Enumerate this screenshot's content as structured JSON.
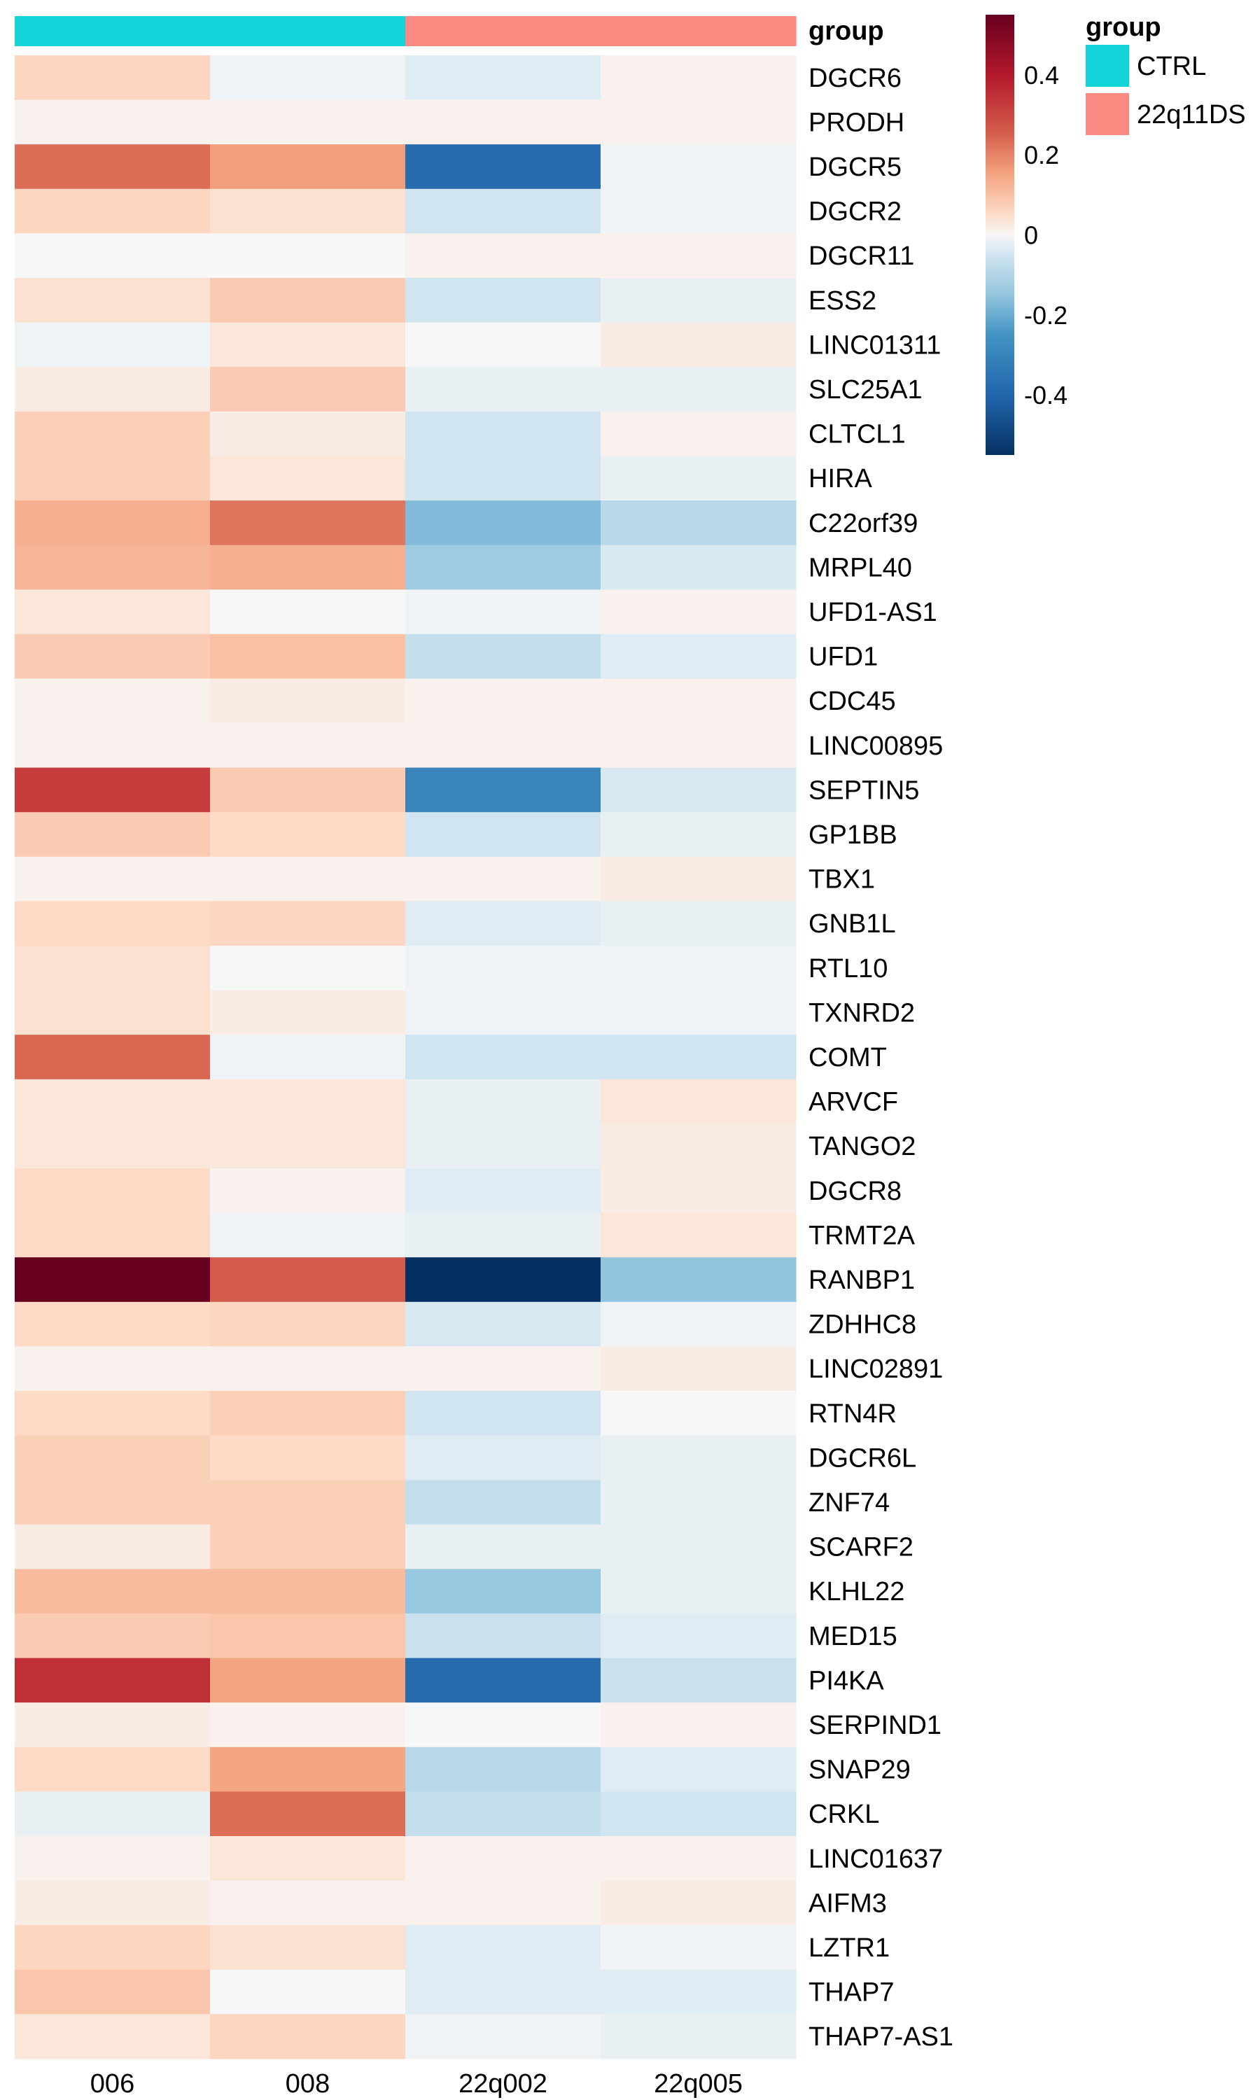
{
  "chart_data": {
    "type": "heatmap",
    "title": "",
    "columns": [
      "006",
      "008",
      "22q002",
      "22q005"
    ],
    "column_groups": [
      "CTRL",
      "CTRL",
      "22q11DS",
      "22q11DS"
    ],
    "annotation": {
      "label": "group",
      "legend_title": "group",
      "levels": [
        {
          "name": "CTRL",
          "color": "#13d4d8"
        },
        {
          "name": "22q11DS",
          "color": "#fc8a82"
        }
      ]
    },
    "color_scale": {
      "min": -0.55,
      "max": 0.55,
      "ticks": [
        0.4,
        0.2,
        0,
        -0.2,
        -0.4
      ],
      "stops": [
        {
          "value": 0.55,
          "color": "#67001f"
        },
        {
          "value": 0.4,
          "color": "#b2182b"
        },
        {
          "value": 0.25,
          "color": "#d6604d"
        },
        {
          "value": 0.15,
          "color": "#f4a582"
        },
        {
          "value": 0.05,
          "color": "#fddbc7"
        },
        {
          "value": 0,
          "color": "#f7f7f7"
        },
        {
          "value": -0.05,
          "color": "#d1e5f0"
        },
        {
          "value": -0.15,
          "color": "#92c5de"
        },
        {
          "value": -0.25,
          "color": "#4393c3"
        },
        {
          "value": -0.4,
          "color": "#2166ac"
        },
        {
          "value": -0.55,
          "color": "#053061"
        }
      ]
    },
    "rows": [
      {
        "gene": "DGCR6",
        "values": [
          0.06,
          -0.01,
          -0.03,
          0.01
        ]
      },
      {
        "gene": "PRODH",
        "values": [
          0.01,
          0.01,
          0.01,
          0.01
        ]
      },
      {
        "gene": "DGCR5",
        "values": [
          0.23,
          0.16,
          -0.38,
          -0.01
        ]
      },
      {
        "gene": "DGCR2",
        "values": [
          0.06,
          0.04,
          -0.05,
          -0.01
        ]
      },
      {
        "gene": "DGCR11",
        "values": [
          0.0,
          0.0,
          0.01,
          0.01
        ]
      },
      {
        "gene": "ESS2",
        "values": [
          0.04,
          0.08,
          -0.05,
          -0.02
        ]
      },
      {
        "gene": "LINC01311",
        "values": [
          -0.01,
          0.03,
          0.0,
          0.02
        ]
      },
      {
        "gene": "SLC25A1",
        "values": [
          0.02,
          0.08,
          -0.02,
          -0.02
        ]
      },
      {
        "gene": "CLTCL1",
        "values": [
          0.07,
          0.02,
          -0.05,
          0.01
        ]
      },
      {
        "gene": "HIRA",
        "values": [
          0.07,
          0.03,
          -0.05,
          -0.02
        ]
      },
      {
        "gene": "C22orf39",
        "values": [
          0.13,
          0.22,
          -0.17,
          -0.09
        ]
      },
      {
        "gene": "MRPL40",
        "values": [
          0.12,
          0.13,
          -0.13,
          -0.04
        ]
      },
      {
        "gene": "UFD1-AS1",
        "values": [
          0.03,
          0.0,
          -0.01,
          0.01
        ]
      },
      {
        "gene": "UFD1",
        "values": [
          0.08,
          0.1,
          -0.07,
          -0.03
        ]
      },
      {
        "gene": "CDC45",
        "values": [
          0.01,
          0.02,
          0.01,
          0.01
        ]
      },
      {
        "gene": "LINC00895",
        "values": [
          0.01,
          0.01,
          0.01,
          0.01
        ]
      },
      {
        "gene": "SEPTIN5",
        "values": [
          0.32,
          0.08,
          -0.3,
          -0.04
        ]
      },
      {
        "gene": "GP1BB",
        "values": [
          0.08,
          0.05,
          -0.05,
          -0.02
        ]
      },
      {
        "gene": "TBX1",
        "values": [
          0.01,
          0.01,
          0.01,
          0.02
        ]
      },
      {
        "gene": "GNB1L",
        "values": [
          0.05,
          0.06,
          -0.03,
          -0.02
        ]
      },
      {
        "gene": "RTL10",
        "values": [
          0.04,
          0.0,
          -0.01,
          -0.01
        ]
      },
      {
        "gene": "TXNRD2",
        "values": [
          0.04,
          0.02,
          -0.01,
          -0.01
        ]
      },
      {
        "gene": "COMT",
        "values": [
          0.24,
          -0.01,
          -0.05,
          -0.05
        ]
      },
      {
        "gene": "ARVCF",
        "values": [
          0.03,
          0.03,
          -0.02,
          0.03
        ]
      },
      {
        "gene": "TANGO2",
        "values": [
          0.03,
          0.03,
          -0.02,
          0.02
        ]
      },
      {
        "gene": "DGCR8",
        "values": [
          0.05,
          0.01,
          -0.03,
          0.02
        ]
      },
      {
        "gene": "TRMT2A",
        "values": [
          0.05,
          -0.01,
          -0.02,
          0.03
        ]
      },
      {
        "gene": "RANBP1",
        "values": [
          0.55,
          0.26,
          -0.55,
          -0.15
        ]
      },
      {
        "gene": "ZDHHC8",
        "values": [
          0.05,
          0.06,
          -0.04,
          -0.01
        ]
      },
      {
        "gene": "LINC02891",
        "values": [
          0.01,
          0.01,
          0.01,
          0.02
        ]
      },
      {
        "gene": "RTN4R",
        "values": [
          0.05,
          0.07,
          -0.05,
          0.0
        ]
      },
      {
        "gene": "DGCR6L",
        "values": [
          0.07,
          0.05,
          -0.03,
          -0.02
        ]
      },
      {
        "gene": "ZNF74",
        "values": [
          0.07,
          0.07,
          -0.07,
          -0.02
        ]
      },
      {
        "gene": "SCARF2",
        "values": [
          0.02,
          0.07,
          -0.02,
          -0.02
        ]
      },
      {
        "gene": "KLHL22",
        "values": [
          0.11,
          0.11,
          -0.14,
          -0.02
        ]
      },
      {
        "gene": "MED15",
        "values": [
          0.08,
          0.09,
          -0.06,
          -0.03
        ]
      },
      {
        "gene": "PI4KA",
        "values": [
          0.35,
          0.15,
          -0.38,
          -0.06
        ]
      },
      {
        "gene": "SERPIND1",
        "values": [
          0.02,
          0.01,
          0.0,
          0.01
        ]
      },
      {
        "gene": "SNAP29",
        "values": [
          0.05,
          0.15,
          -0.09,
          -0.03
        ]
      },
      {
        "gene": "CRKL",
        "values": [
          -0.02,
          0.23,
          -0.07,
          -0.05
        ]
      },
      {
        "gene": "LINC01637",
        "values": [
          0.01,
          0.03,
          0.01,
          0.01
        ]
      },
      {
        "gene": "AIFM3",
        "values": [
          0.02,
          0.01,
          0.01,
          0.02
        ]
      },
      {
        "gene": "LZTR1",
        "values": [
          0.06,
          0.04,
          -0.03,
          -0.01
        ]
      },
      {
        "gene": "THAP7",
        "values": [
          0.09,
          0.0,
          -0.03,
          -0.03
        ]
      },
      {
        "gene": "THAP7-AS1",
        "values": [
          0.03,
          0.06,
          -0.01,
          -0.02
        ]
      }
    ]
  }
}
